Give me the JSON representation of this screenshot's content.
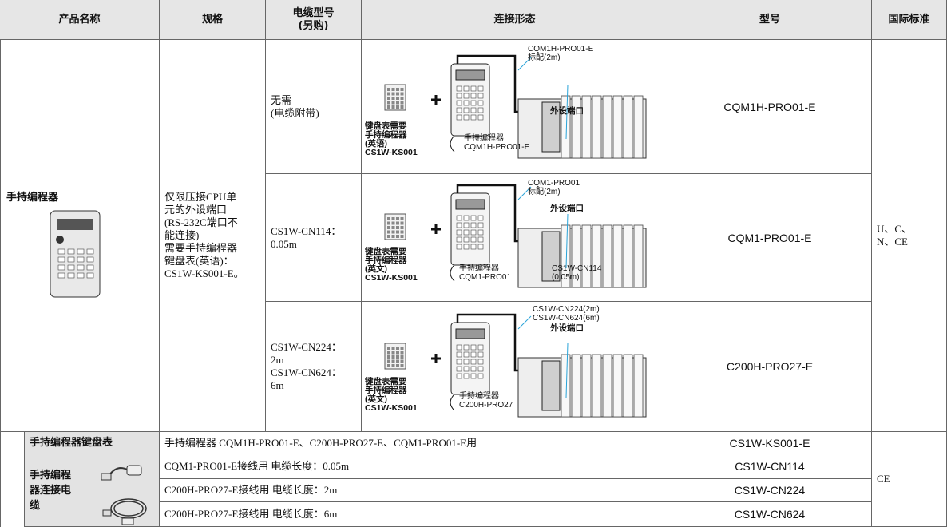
{
  "table": {
    "columns": [
      "产品名称",
      "规格",
      "电缆型号\n(另购)",
      "连接形态",
      "型号",
      "国际标准"
    ],
    "group": {
      "product": "手持编程器",
      "spec": "仅限压接CPU单\n元的外设端口\n(RS-232C端口不\n能连接)\n需要手持编程器\n键盘表(英语)：\nCS1W-KS001-E。",
      "standard": "U、C、\nN、CE"
    },
    "rows": [
      {
        "cable": "无需\n(电缆附带)",
        "model": "CQM1H-PRO01-E",
        "labels": {
          "cable": "CQM1H-PRO01-E\n标配(2m)",
          "port": "外设端口",
          "sheet": "键盘表需要\n手持编程器\n(英语)\nCS1W-KS001",
          "programmer": "手持编程器\nCQM1H-PRO01-E"
        }
      },
      {
        "cable": "CS1W-CN114：\n0.05m",
        "model": "CQM1-PRO01-E",
        "labels": {
          "cable": "CQM1-PRO01\n标配(2m)",
          "port": "外设端口",
          "sheet": "键盘表需要\n手持编程器\n(英文)\nCS1W-KS001",
          "programmer": "手持编程器\nCQM1-PRO01",
          "adapter": "CS1W-CN114\n(0.05m)"
        }
      },
      {
        "cable": "CS1W-CN224：\n2m\nCS1W-CN624：\n6m",
        "model": "C200H-PRO27-E",
        "labels": {
          "cable": "CS1W-CN224(2m)\nCS1W-CN624(6m)",
          "port": "外设端口",
          "sheet": "键盘表需要\n手持编程器\n(英文)\nCS1W-KS001",
          "programmer": "手持编程器\nC200H-PRO27"
        }
      }
    ],
    "accessories": {
      "sheet": {
        "name": "手持编程器键盘表",
        "desc": "手持编程器 CQM1H-PRO01-E、C200H-PRO27-E、CQM1-PRO01-E用",
        "model": "CS1W-KS001-E"
      },
      "cables": {
        "name": "手持编程\n器连接电\n缆",
        "items": [
          {
            "desc": "CQM1-PRO01-E接线用  电缆长度：0.05m",
            "model": "CS1W-CN114"
          },
          {
            "desc": "C200H-PRO27-E接线用 电缆长度：2m",
            "model": "CS1W-CN224"
          },
          {
            "desc": "C200H-PRO27-E接线用 电缆长度：6m",
            "model": "CS1W-CN624"
          }
        ]
      },
      "standard": "CE"
    }
  }
}
